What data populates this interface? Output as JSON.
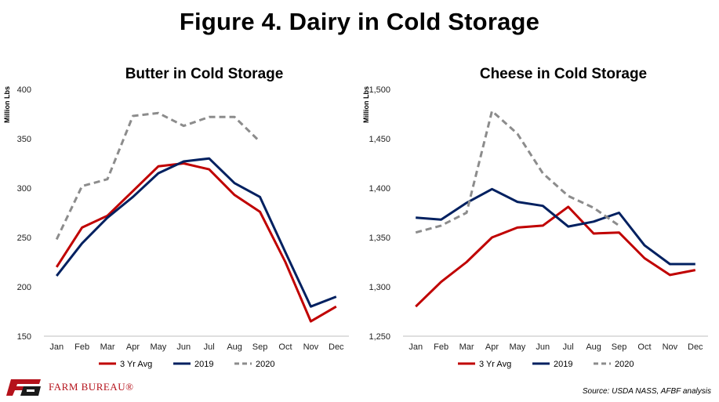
{
  "title": "Figure 4. Dairy in Cold Storage",
  "source": "Source:  USDA NASS, AFBF analysis",
  "logo": {
    "text": "FARM BUREAU®"
  },
  "colors": {
    "avg": "#c00000",
    "y2019": "#002060",
    "y2020": "#8c8c8c"
  },
  "chart_data": [
    {
      "type": "line",
      "title": "Butter in Cold Storage",
      "ylabel": "Million Lbs",
      "categories": [
        "Jan",
        "Feb",
        "Mar",
        "Apr",
        "May",
        "Jun",
        "Jul",
        "Aug",
        "Sep",
        "Oct",
        "Nov",
        "Dec"
      ],
      "ylim": [
        150,
        400
      ],
      "yticks": [
        "150",
        "200",
        "250",
        "300",
        "350",
        "400"
      ],
      "legend_position": "bottom",
      "grid": false,
      "series": [
        {
          "name": "3 Yr Avg",
          "color": "#c00000",
          "dash": "solid",
          "values": [
            220,
            260,
            272,
            297,
            322,
            325,
            319,
            293,
            276,
            225,
            165,
            180
          ]
        },
        {
          "name": "2019",
          "color": "#002060",
          "dash": "solid",
          "values": [
            211,
            244,
            270,
            291,
            315,
            327,
            330,
            305,
            291,
            235,
            180,
            190
          ]
        },
        {
          "name": "2020",
          "color": "#8c8c8c",
          "dash": "dashed",
          "values": [
            248,
            302,
            309,
            373,
            376,
            363,
            372,
            372,
            347,
            null,
            null,
            null
          ]
        }
      ]
    },
    {
      "type": "line",
      "title": "Cheese in Cold Storage",
      "ylabel": "Million Lbs",
      "categories": [
        "Jan",
        "Feb",
        "Mar",
        "Apr",
        "May",
        "Jun",
        "Jul",
        "Aug",
        "Sep",
        "Oct",
        "Nov",
        "Dec"
      ],
      "ylim": [
        1250,
        1500
      ],
      "yticks": [
        "1,250",
        "1,300",
        "1,350",
        "1,400",
        "1,450",
        "1,500"
      ],
      "legend_position": "bottom",
      "grid": false,
      "series": [
        {
          "name": "3 Yr Avg",
          "color": "#c00000",
          "dash": "solid",
          "values": [
            1280,
            1305,
            1325,
            1350,
            1360,
            1362,
            1381,
            1354,
            1355,
            1329,
            1312,
            1317
          ]
        },
        {
          "name": "2019",
          "color": "#002060",
          "dash": "solid",
          "values": [
            1370,
            1368,
            1385,
            1399,
            1386,
            1382,
            1361,
            1366,
            1375,
            1342,
            1323,
            1323
          ]
        },
        {
          "name": "2020",
          "color": "#8c8c8c",
          "dash": "dashed",
          "values": [
            1355,
            1362,
            1375,
            1478,
            1455,
            1415,
            1392,
            1380,
            1362,
            null,
            null,
            null
          ]
        }
      ]
    }
  ]
}
